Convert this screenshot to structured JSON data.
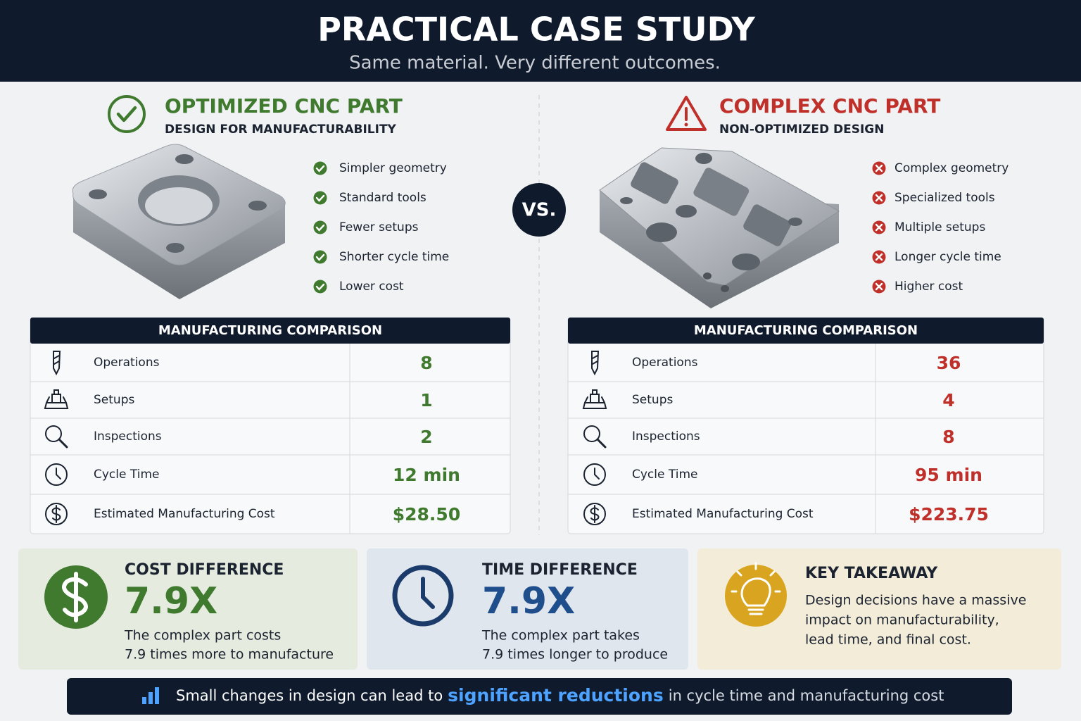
{
  "header": {
    "title": "PRACTICAL CASE STUDY",
    "subtitle": "Same material. Very different outcomes."
  },
  "vs": "VS.",
  "left": {
    "title": "OPTIMIZED CNC PART",
    "subtitle": "DESIGN FOR MANUFACTURABILITY",
    "features": [
      "Simpler geometry",
      "Standard tools",
      "Fewer setups",
      "Shorter cycle time",
      "Lower cost"
    ],
    "table": {
      "heading": "MANUFACTURING COMPARISON",
      "rows": [
        [
          "Operations",
          "8"
        ],
        [
          "Setups",
          "1"
        ],
        [
          "Inspections",
          "2"
        ],
        [
          "Cycle Time",
          "12 min"
        ],
        [
          "Estimated Manufacturing Cost",
          "$28.50"
        ]
      ]
    }
  },
  "right": {
    "title": "COMPLEX CNC PART",
    "subtitle": "NON-OPTIMIZED DESIGN",
    "features": [
      "Complex geometry",
      "Specialized tools",
      "Multiple setups",
      "Longer cycle time",
      "Higher cost"
    ],
    "table": {
      "heading": "MANUFACTURING COMPARISON",
      "rows": [
        [
          "Operations",
          "36"
        ],
        [
          "Setups",
          "4"
        ],
        [
          "Inspections",
          "8"
        ],
        [
          "Cycle Time",
          "95 min"
        ],
        [
          "Estimated Manufacturing Cost",
          "$223.75"
        ]
      ]
    }
  },
  "cards": {
    "cost": {
      "title": "COST DIFFERENCE",
      "value": "7.9X",
      "lines": [
        "The complex part costs",
        "7.9 times more to manufacture"
      ]
    },
    "time": {
      "title": "TIME DIFFERENCE",
      "value": "7.9X",
      "lines": [
        "The complex part takes",
        "7.9 times longer to produce"
      ]
    },
    "takeaway": {
      "title": "KEY TAKEAWAY",
      "lines": [
        "Design decisions have a massive",
        "impact on manufacturability,",
        "lead time, and final cost."
      ]
    }
  },
  "footer": {
    "before": "Small changes in design can lead to",
    "highlight": "significant reductions",
    "after": "in cycle time and manufacturing cost"
  }
}
